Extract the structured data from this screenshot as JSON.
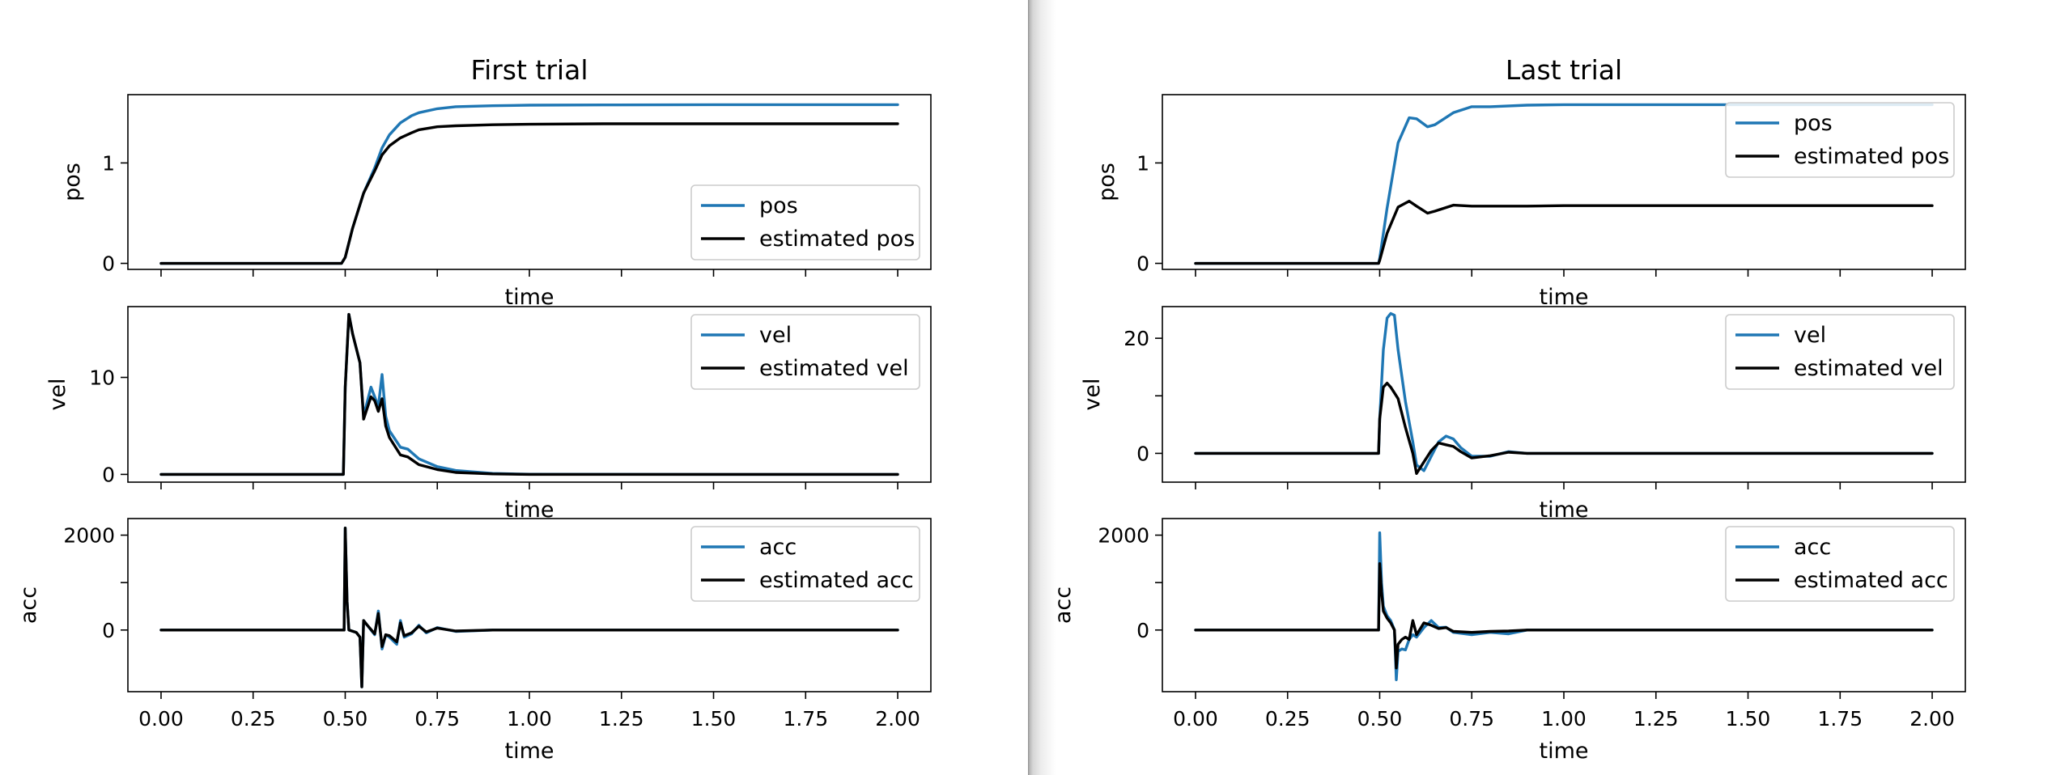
{
  "colors": {
    "truth": "#1f77b4",
    "estimate": "#000000",
    "axes": "#000000",
    "background": "#ffffff"
  },
  "chart_data": [
    {
      "type": "line",
      "title": "First trial",
      "subplots": [
        {
          "ylabel": "pos",
          "xlabel": "time",
          "xlim": [
            -0.09,
            2.09
          ],
          "ylim": [
            -0.06,
            1.68
          ],
          "yticks": [
            0,
            1
          ],
          "legend": "lower-right",
          "series": [
            {
              "name": "pos",
              "color": "#1f77b4",
              "x": [
                0,
                0.49,
                0.5,
                0.52,
                0.55,
                0.58,
                0.6,
                0.62,
                0.65,
                0.68,
                0.7,
                0.75,
                0.8,
                0.9,
                1.0,
                1.2,
                1.5,
                2.0
              ],
              "y": [
                0,
                0,
                0.06,
                0.35,
                0.7,
                0.95,
                1.15,
                1.28,
                1.4,
                1.47,
                1.5,
                1.54,
                1.56,
                1.57,
                1.575,
                1.578,
                1.58,
                1.58
              ]
            },
            {
              "name": "estimated pos",
              "color": "#000000",
              "x": [
                0,
                0.49,
                0.5,
                0.52,
                0.55,
                0.58,
                0.6,
                0.62,
                0.65,
                0.68,
                0.7,
                0.75,
                0.8,
                0.9,
                1.0,
                1.2,
                1.5,
                2.0
              ],
              "y": [
                0,
                0,
                0.06,
                0.35,
                0.7,
                0.92,
                1.08,
                1.17,
                1.25,
                1.3,
                1.33,
                1.36,
                1.37,
                1.38,
                1.385,
                1.39,
                1.39,
                1.39
              ]
            }
          ]
        },
        {
          "ylabel": "vel",
          "xlabel": "time",
          "xlim": [
            -0.09,
            2.09
          ],
          "ylim": [
            -0.8,
            17.3
          ],
          "yticks": [
            0,
            10
          ],
          "legend": "upper-right",
          "series": [
            {
              "name": "vel",
              "color": "#1f77b4",
              "x": [
                0,
                0.495,
                0.5,
                0.51,
                0.52,
                0.54,
                0.55,
                0.57,
                0.58,
                0.59,
                0.6,
                0.61,
                0.62,
                0.65,
                0.67,
                0.7,
                0.75,
                0.8,
                0.9,
                1.0,
                1.5,
                2.0
              ],
              "y": [
                0,
                0,
                9,
                16.5,
                14.5,
                11.5,
                6,
                9,
                8,
                7,
                10.3,
                6,
                4.5,
                2.8,
                2.6,
                1.6,
                0.8,
                0.4,
                0.1,
                0.02,
                0,
                0
              ]
            },
            {
              "name": "estimated vel",
              "color": "#000000",
              "x": [
                0,
                0.495,
                0.5,
                0.51,
                0.52,
                0.54,
                0.55,
                0.57,
                0.58,
                0.59,
                0.6,
                0.61,
                0.62,
                0.65,
                0.67,
                0.7,
                0.75,
                0.8,
                0.9,
                1.0,
                1.5,
                2.0
              ],
              "y": [
                0,
                0,
                9,
                16.5,
                14.5,
                11.5,
                5.7,
                8,
                7.6,
                6.5,
                7.8,
                5,
                3.8,
                2,
                1.8,
                1,
                0.5,
                0.2,
                0.05,
                0,
                0,
                0
              ]
            }
          ]
        },
        {
          "ylabel": "acc",
          "xlabel": "time",
          "xlim": [
            -0.09,
            2.09
          ],
          "ylim": [
            -1300,
            2350
          ],
          "yticks": [
            0,
            1000,
            2000
          ],
          "yticklabels": [
            "0",
            "",
            "2000"
          ],
          "xticks": [
            0,
            0.25,
            0.5,
            0.75,
            1.0,
            1.25,
            1.5,
            1.75,
            2.0
          ],
          "xticklabels": [
            "0.00",
            "0.25",
            "0.50",
            "0.75",
            "1.00",
            "1.25",
            "1.50",
            "1.75",
            "2.00"
          ],
          "legend": "upper-right",
          "series": [
            {
              "name": "acc",
              "color": "#1f77b4",
              "x": [
                0,
                0.497,
                0.5,
                0.505,
                0.51,
                0.53,
                0.54,
                0.545,
                0.55,
                0.56,
                0.58,
                0.59,
                0.6,
                0.61,
                0.62,
                0.64,
                0.65,
                0.66,
                0.68,
                0.7,
                0.72,
                0.75,
                0.8,
                0.9,
                2.0
              ],
              "y": [
                0,
                0,
                2150,
                600,
                0,
                -50,
                -150,
                -1200,
                200,
                100,
                -100,
                400,
                -400,
                -100,
                -150,
                -300,
                200,
                -150,
                -80,
                100,
                -60,
                50,
                -30,
                0,
                0
              ]
            },
            {
              "name": "estimated acc",
              "color": "#000000",
              "x": [
                0,
                0.497,
                0.5,
                0.505,
                0.51,
                0.53,
                0.54,
                0.545,
                0.55,
                0.56,
                0.58,
                0.59,
                0.6,
                0.61,
                0.62,
                0.64,
                0.65,
                0.66,
                0.68,
                0.7,
                0.72,
                0.75,
                0.8,
                0.9,
                2.0
              ],
              "y": [
                0,
                0,
                2150,
                600,
                0,
                -50,
                -150,
                -1200,
                200,
                100,
                -80,
                350,
                -350,
                -100,
                -120,
                -250,
                150,
                -120,
                -60,
                80,
                -40,
                40,
                -20,
                0,
                0
              ]
            }
          ]
        }
      ]
    },
    {
      "type": "line",
      "title": "Last trial",
      "subplots": [
        {
          "ylabel": "pos",
          "xlabel": "time",
          "xlim": [
            -0.09,
            2.09
          ],
          "ylim": [
            -0.06,
            1.68
          ],
          "yticks": [
            0,
            1
          ],
          "legend": "upper-right",
          "series": [
            {
              "name": "pos",
              "color": "#1f77b4",
              "x": [
                0,
                0.497,
                0.5,
                0.52,
                0.55,
                0.58,
                0.6,
                0.63,
                0.65,
                0.7,
                0.75,
                0.8,
                0.9,
                1.0,
                1.5,
                2.0
              ],
              "y": [
                0,
                0,
                0.05,
                0.55,
                1.2,
                1.45,
                1.44,
                1.36,
                1.38,
                1.5,
                1.56,
                1.56,
                1.575,
                1.58,
                1.58,
                1.58
              ]
            },
            {
              "name": "estimated pos",
              "color": "#000000",
              "x": [
                0,
                0.497,
                0.5,
                0.52,
                0.55,
                0.58,
                0.6,
                0.63,
                0.65,
                0.7,
                0.75,
                0.8,
                0.9,
                1.0,
                1.5,
                2.0
              ],
              "y": [
                0,
                0,
                0.03,
                0.3,
                0.56,
                0.62,
                0.57,
                0.5,
                0.52,
                0.58,
                0.57,
                0.57,
                0.57,
                0.575,
                0.575,
                0.575
              ]
            }
          ]
        },
        {
          "ylabel": "vel",
          "xlabel": "time",
          "xlim": [
            -0.09,
            2.09
          ],
          "ylim": [
            -5,
            25.5
          ],
          "yticks": [
            0,
            10,
            20
          ],
          "yticklabels": [
            "0",
            "",
            "20"
          ],
          "legend": "upper-right",
          "series": [
            {
              "name": "vel",
              "color": "#1f77b4",
              "x": [
                0,
                0.497,
                0.5,
                0.51,
                0.52,
                0.53,
                0.54,
                0.55,
                0.57,
                0.59,
                0.6,
                0.62,
                0.64,
                0.66,
                0.68,
                0.7,
                0.72,
                0.75,
                0.8,
                0.85,
                0.9,
                1.0,
                2.0
              ],
              "y": [
                0,
                0,
                6,
                18,
                23.5,
                24.3,
                24,
                18,
                9,
                2,
                -2,
                -3,
                -0.5,
                2,
                3,
                2.5,
                1,
                -0.5,
                -0.5,
                0.3,
                0,
                0,
                0
              ]
            },
            {
              "name": "estimated vel",
              "color": "#000000",
              "x": [
                0,
                0.497,
                0.5,
                0.51,
                0.52,
                0.53,
                0.54,
                0.55,
                0.57,
                0.59,
                0.6,
                0.62,
                0.64,
                0.66,
                0.68,
                0.7,
                0.72,
                0.75,
                0.8,
                0.85,
                0.9,
                1.0,
                2.0
              ],
              "y": [
                0,
                0,
                6,
                11.5,
                12.2,
                11.5,
                10.5,
                9.5,
                4.5,
                0,
                -3.5,
                -1.5,
                0.5,
                1.8,
                1.5,
                1.2,
                0.3,
                -0.8,
                -0.4,
                0.2,
                0,
                0,
                0
              ]
            }
          ]
        },
        {
          "ylabel": "acc",
          "xlabel": "time",
          "xlim": [
            -0.09,
            2.09
          ],
          "ylim": [
            -1300,
            2350
          ],
          "yticks": [
            0,
            1000,
            2000
          ],
          "yticklabels": [
            "0",
            "",
            "2000"
          ],
          "xticks": [
            0,
            0.25,
            0.5,
            0.75,
            1.0,
            1.25,
            1.5,
            1.75,
            2.0
          ],
          "xticklabels": [
            "0.00",
            "0.25",
            "0.50",
            "0.75",
            "1.00",
            "1.25",
            "1.50",
            "1.75",
            "2.00"
          ],
          "legend": "upper-right",
          "series": [
            {
              "name": "acc",
              "color": "#1f77b4",
              "x": [
                0,
                0.497,
                0.5,
                0.505,
                0.51,
                0.52,
                0.53,
                0.54,
                0.545,
                0.55,
                0.56,
                0.57,
                0.58,
                0.59,
                0.6,
                0.62,
                0.64,
                0.66,
                0.68,
                0.7,
                0.75,
                0.8,
                0.85,
                0.9,
                1.0,
                2.0
              ],
              "y": [
                0,
                0,
                2050,
                1000,
                500,
                300,
                200,
                0,
                -1050,
                -450,
                -400,
                -420,
                -200,
                -100,
                -150,
                50,
                200,
                50,
                60,
                -50,
                -100,
                -50,
                -80,
                0,
                0,
                0
              ]
            },
            {
              "name": "estimated acc",
              "color": "#000000",
              "x": [
                0,
                0.497,
                0.5,
                0.505,
                0.51,
                0.52,
                0.53,
                0.54,
                0.545,
                0.55,
                0.56,
                0.57,
                0.58,
                0.59,
                0.6,
                0.62,
                0.64,
                0.66,
                0.68,
                0.7,
                0.75,
                0.8,
                0.85,
                0.9,
                1.0,
                2.0
              ],
              "y": [
                0,
                0,
                1400,
                800,
                400,
                250,
                150,
                0,
                -800,
                -300,
                -200,
                -150,
                -200,
                200,
                -100,
                150,
                100,
                30,
                50,
                -30,
                -50,
                -30,
                -20,
                0,
                0,
                0
              ]
            }
          ]
        }
      ]
    }
  ]
}
